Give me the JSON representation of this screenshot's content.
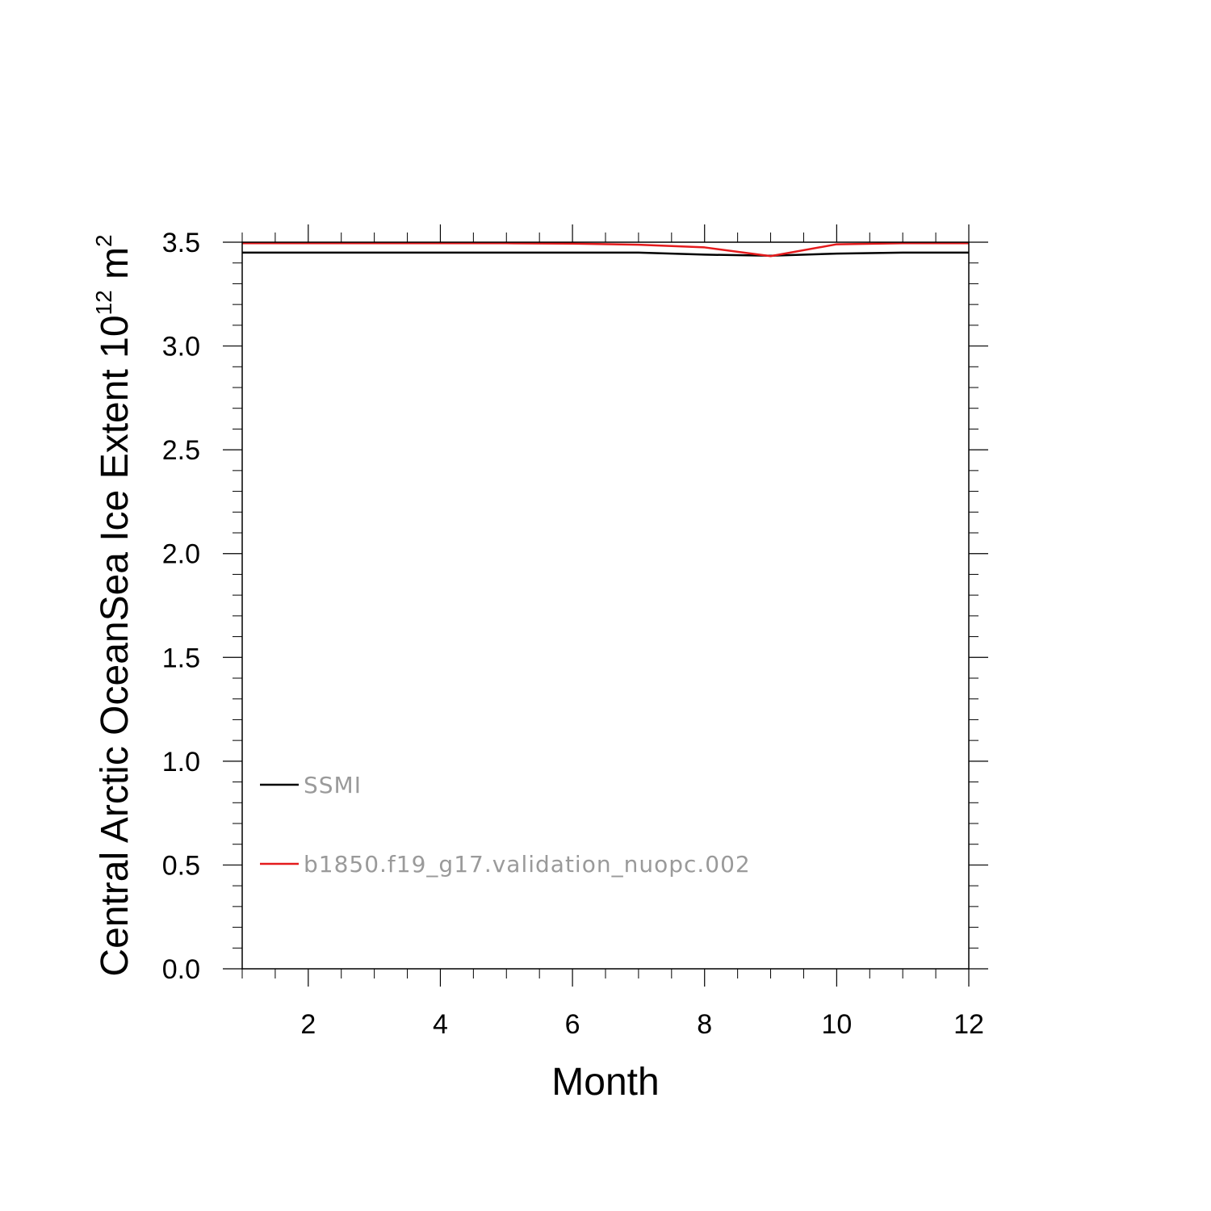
{
  "chart_data": {
    "type": "line",
    "title": "",
    "xlabel": "Month",
    "ylabel": {
      "prefix": "Central Arctic OceanSea Ice Extent 10",
      "exponent1": "12",
      "middle": " m",
      "exponent2": "2"
    },
    "xlim": [
      1,
      12
    ],
    "ylim": [
      0,
      3.5
    ],
    "x_ticks": [
      2,
      4,
      6,
      8,
      10,
      12
    ],
    "x_tick_labels": [
      "2",
      "4",
      "6",
      "8",
      "10",
      "12"
    ],
    "y_ticks": [
      0,
      0.5,
      1.0,
      1.5,
      2.0,
      2.5,
      3.0,
      3.5
    ],
    "y_tick_labels": [
      "0.0",
      "0.5",
      "1.0",
      "1.5",
      "2.0",
      "2.5",
      "3.0",
      "3.5"
    ],
    "x": [
      1,
      2,
      3,
      4,
      5,
      6,
      7,
      8,
      9,
      10,
      11,
      12
    ],
    "series": [
      {
        "name": "SSMI",
        "color": "#000000",
        "values": [
          3.45,
          3.45,
          3.45,
          3.45,
          3.45,
          3.45,
          3.45,
          3.44,
          3.435,
          3.445,
          3.45,
          3.45
        ]
      },
      {
        "name": "b1850.f19_g17.validation_nuopc.002",
        "color": "#e41a1c",
        "values": [
          3.495,
          3.495,
          3.495,
          3.495,
          3.495,
          3.493,
          3.488,
          3.475,
          3.433,
          3.49,
          3.495,
          3.495
        ]
      }
    ],
    "legend_placement": "lower-left inside",
    "grid": false
  }
}
